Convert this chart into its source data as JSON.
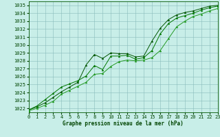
{
  "title": "Graphe pression niveau de la mer (hPa)",
  "background_color": "#c8eee8",
  "grid_color": "#88bbbb",
  "line_color_1": "#006600",
  "line_color_2": "#007700",
  "line_color_3": "#229922",
  "xlim": [
    0,
    23
  ],
  "ylim": [
    1021.5,
    1035.5
  ],
  "yticks": [
    1022,
    1023,
    1024,
    1025,
    1026,
    1027,
    1028,
    1029,
    1030,
    1031,
    1032,
    1033,
    1034,
    1035
  ],
  "xticks": [
    0,
    1,
    2,
    3,
    4,
    5,
    6,
    7,
    8,
    9,
    10,
    11,
    12,
    13,
    14,
    15,
    16,
    17,
    18,
    19,
    20,
    21,
    22,
    23
  ],
  "series": [
    {
      "x": [
        0,
        1,
        2,
        3,
        4,
        5,
        6,
        7,
        8,
        9,
        10,
        11,
        12,
        13,
        14,
        15,
        16,
        17,
        18,
        19,
        20,
        21,
        22,
        23
      ],
      "y": [
        1021.8,
        1022.2,
        1022.7,
        1023.4,
        1024.1,
        1024.7,
        1025.3,
        1027.5,
        1028.8,
        1028.3,
        1029.0,
        1028.9,
        1028.9,
        1028.5,
        1028.6,
        1030.5,
        1032.1,
        1033.2,
        1033.8,
        1034.1,
        1034.3,
        1034.6,
        1034.9,
        1035.0
      ],
      "color": "#005500",
      "marker": "^",
      "markersize": 2,
      "linewidth": 0.7
    },
    {
      "x": [
        0,
        1,
        2,
        3,
        4,
        5,
        6,
        7,
        8,
        9,
        10,
        11,
        12,
        13,
        14,
        15,
        16,
        17,
        18,
        19,
        20,
        21,
        22,
        23
      ],
      "y": [
        1021.8,
        1022.3,
        1023.1,
        1023.9,
        1024.7,
        1025.1,
        1025.5,
        1026.1,
        1027.4,
        1026.9,
        1028.6,
        1028.6,
        1028.7,
        1028.2,
        1028.4,
        1029.3,
        1031.4,
        1032.7,
        1033.4,
        1033.7,
        1034.0,
        1034.4,
        1034.7,
        1034.9
      ],
      "color": "#007700",
      "marker": "^",
      "markersize": 2,
      "linewidth": 0.7
    },
    {
      "x": [
        0,
        1,
        2,
        3,
        4,
        5,
        6,
        7,
        8,
        9,
        10,
        11,
        12,
        13,
        14,
        15,
        16,
        17,
        18,
        19,
        20,
        21,
        22,
        23
      ],
      "y": [
        1021.7,
        1022.0,
        1022.4,
        1022.9,
        1023.8,
        1024.3,
        1024.8,
        1025.3,
        1026.3,
        1026.4,
        1027.3,
        1027.9,
        1028.1,
        1028.0,
        1028.1,
        1028.4,
        1029.3,
        1030.8,
        1032.3,
        1033.0,
        1033.6,
        1033.9,
        1034.3,
        1034.6
      ],
      "color": "#229922",
      "marker": "^",
      "markersize": 2,
      "linewidth": 0.7
    }
  ],
  "tick_fontsize": 5,
  "xlabel_fontsize": 5.5,
  "tick_color": "#004400",
  "spine_color": "#005500"
}
